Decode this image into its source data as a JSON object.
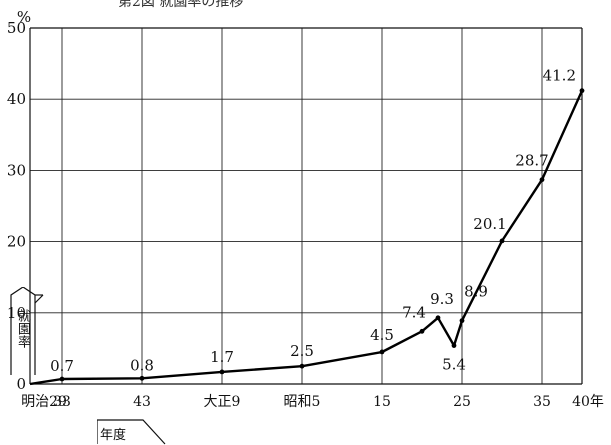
{
  "chart_data": {
    "type": "line",
    "title": "第2図 就園率の推移",
    "ylabel": "就園率",
    "ylabel_unit": "%",
    "xlabel": "年度",
    "ylim": [
      0,
      50
    ],
    "yticks": [
      0,
      10,
      20,
      30,
      40,
      50
    ],
    "xtick_labels": [
      "明治29",
      "33",
      "43",
      "大正9",
      "昭和5",
      "15",
      "25",
      "35",
      "40年"
    ],
    "grid": true,
    "series": [
      {
        "points": [
          {
            "x": 1896,
            "y": 0.0,
            "label": "0"
          },
          {
            "x": 1900,
            "y": 0.7,
            "label": "0.7"
          },
          {
            "x": 1910,
            "y": 0.8,
            "label": "0.8"
          },
          {
            "x": 1920,
            "y": 1.7,
            "label": "1.7"
          },
          {
            "x": 1930,
            "y": 2.5,
            "label": "2.5"
          },
          {
            "x": 1940,
            "y": 4.5,
            "label": "4.5"
          },
          {
            "x": 1945,
            "y": 7.4,
            "label": "7.4"
          },
          {
            "x": 1947,
            "y": 9.3,
            "label": "9.3"
          },
          {
            "x": 1949,
            "y": 5.4,
            "label": "5.4"
          },
          {
            "x": 1950,
            "y": 8.9,
            "label": "8.9"
          },
          {
            "x": 1955,
            "y": 20.1,
            "label": "20.1"
          },
          {
            "x": 1960,
            "y": 28.7,
            "label": "28.7"
          },
          {
            "x": 1965,
            "y": 41.2,
            "label": "41.2"
          }
        ]
      }
    ]
  }
}
